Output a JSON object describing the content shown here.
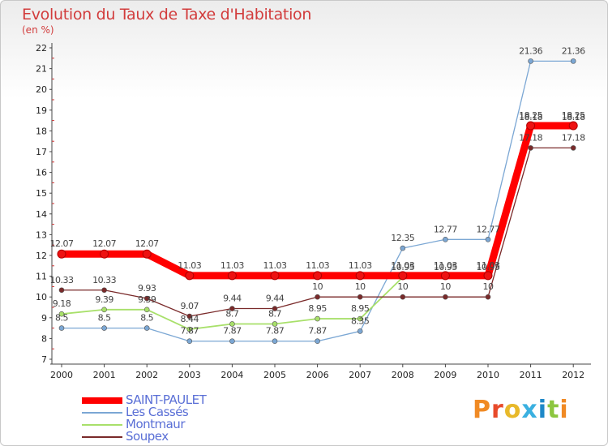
{
  "chart_data": {
    "type": "line",
    "title": "Evolution du Taux de Taxe d'Habitation",
    "subtitle": "(en %)",
    "xlabel": "",
    "ylabel": "",
    "x": [
      "2000",
      "2001",
      "2002",
      "2003",
      "2004",
      "2005",
      "2006",
      "2007",
      "2008",
      "2009",
      "2010",
      "2011",
      "2012"
    ],
    "ylim": [
      7,
      22
    ],
    "yticks": [
      7,
      8,
      9,
      10,
      11,
      12,
      13,
      14,
      15,
      16,
      17,
      18,
      19,
      20,
      21,
      22
    ],
    "grid": false,
    "legend_position": "bottom-left",
    "series": [
      {
        "name": "SAINT-PAULET",
        "color": "#ff0000",
        "values": [
          12.07,
          12.07,
          12.07,
          11.03,
          11.03,
          11.03,
          11.03,
          11.03,
          11.03,
          11.03,
          11.03,
          18.25,
          18.25
        ],
        "labels": [
          "12.07",
          "12.07",
          "12.07",
          "11.03",
          "11.03",
          "11.03",
          "11.03",
          "11.03",
          "11.03",
          "11.03",
          "11.03",
          "18.25",
          "18.25"
        ]
      },
      {
        "name": "Les Cassés",
        "color": "#7ba7d4",
        "values": [
          8.5,
          8.5,
          8.5,
          7.87,
          7.87,
          7.87,
          7.87,
          8.35,
          12.35,
          12.77,
          12.77,
          21.36,
          21.36
        ],
        "labels": [
          "8.5",
          "8.5",
          "8.5",
          "7.87",
          "7.87",
          "7.87",
          "7.87",
          "8.35",
          "12.35",
          "12.77",
          "12.77",
          "21.36",
          "21.36"
        ]
      },
      {
        "name": "Montmaur",
        "color": "#a8e06a",
        "values": [
          9.18,
          9.39,
          9.39,
          8.44,
          8.7,
          8.7,
          8.95,
          8.95,
          10.95,
          10.95,
          10.95,
          18.18,
          18.18
        ],
        "labels": [
          "9.18",
          "9.39",
          "9.39",
          "8.44",
          "8.7",
          "8.7",
          "8.95",
          "8.95",
          "10.95",
          "10.95",
          "10.95",
          "18.18",
          "18.18"
        ]
      },
      {
        "name": "Soupex",
        "color": "#7a2a2a",
        "values": [
          10.33,
          10.33,
          9.93,
          9.07,
          9.44,
          9.44,
          10,
          10,
          10,
          10,
          10,
          17.18,
          17.18
        ],
        "labels": [
          "10.33",
          "10.33",
          "9.93",
          "9.07",
          "9.44",
          "9.44",
          "10",
          "10",
          "10",
          "10",
          "10",
          "17.18",
          "17.18"
        ]
      }
    ]
  },
  "logo": {
    "text": "Proxiti",
    "letter_colors": [
      "#f08a24",
      "#e84a2a",
      "#e8b92a",
      "#3ab0e0",
      "#1e88c8",
      "#8cc63f",
      "#f08a24"
    ]
  }
}
